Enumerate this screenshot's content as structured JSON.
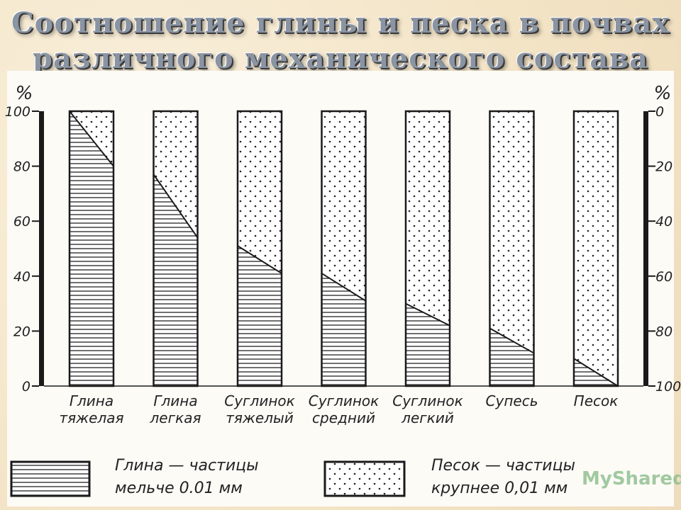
{
  "title": {
    "line1": "Соотношение глины и песка в почвах",
    "line2": "различного механического состава"
  },
  "watermark": "MyShared",
  "chart_data": {
    "type": "bar",
    "title": "Соотношение глины и песка в почвах различного механического состава",
    "left_axis_label": "%",
    "right_axis_label": "%",
    "left_ticks": [
      "100",
      "80",
      "60",
      "40",
      "20",
      "0"
    ],
    "right_ticks": [
      "0",
      "20",
      "40",
      "60",
      "80",
      "100"
    ],
    "ylim": [
      0,
      100
    ],
    "categories": [
      {
        "line1": "Глина",
        "line2": "тяжелая",
        "clay_left": 100,
        "clay_right": 80
      },
      {
        "line1": "Глина",
        "line2": "легкая",
        "clay_left": 77,
        "clay_right": 54
      },
      {
        "line1": "Суглинок",
        "line2": "тяжелый",
        "clay_left": 51,
        "clay_right": 41
      },
      {
        "line1": "Суглинок",
        "line2": "средний",
        "clay_left": 41,
        "clay_right": 31
      },
      {
        "line1": "Суглинок",
        "line2": "легкий",
        "clay_left": 30,
        "clay_right": 22
      },
      {
        "line1": "Супесь",
        "line2": "",
        "clay_left": 21,
        "clay_right": 12
      },
      {
        "line1": "Песок",
        "line2": "",
        "clay_left": 10,
        "clay_right": 0
      }
    ],
    "legend": [
      {
        "line1": "Глина — частицы",
        "line2": "мельче  0.01 мм",
        "pattern": "hatch"
      },
      {
        "line1": "Песок — частицы",
        "line2": "крупнее  0,01 мм",
        "pattern": "dots"
      }
    ]
  }
}
